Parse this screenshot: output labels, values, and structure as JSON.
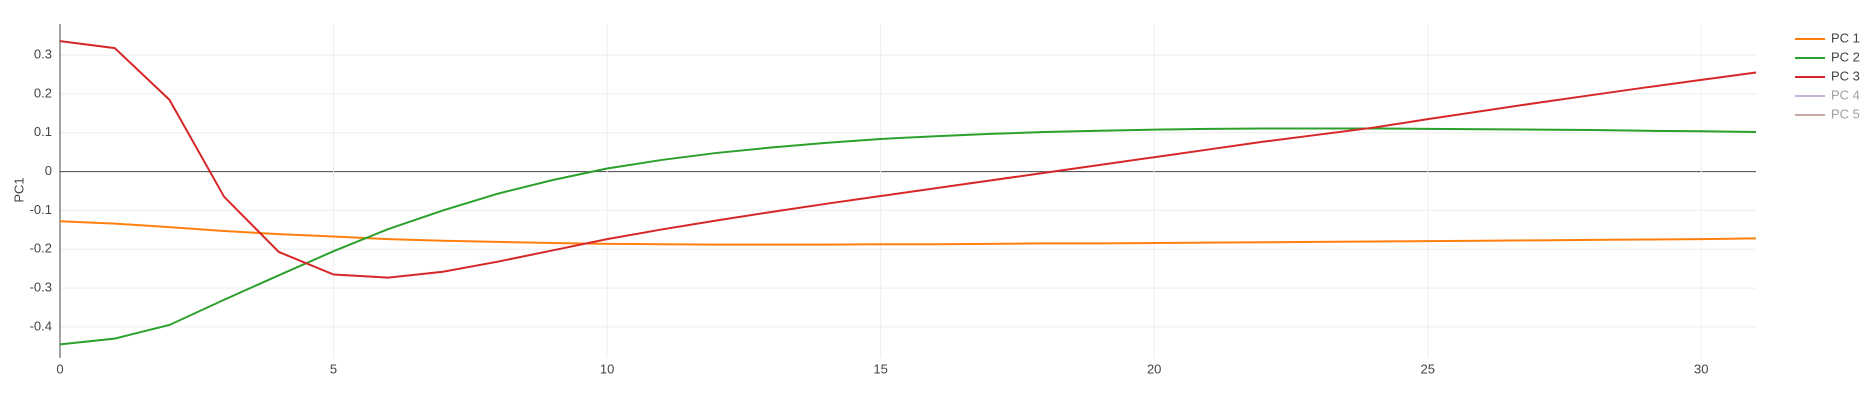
{
  "chart_data": {
    "type": "line",
    "y_label": "PC1",
    "x": [
      0,
      1,
      2,
      3,
      4,
      5,
      6,
      7,
      8,
      9,
      10,
      11,
      12,
      13,
      14,
      15,
      16,
      17,
      18,
      19,
      20,
      21,
      22,
      23,
      24,
      25,
      26,
      27,
      28,
      29,
      30,
      31
    ],
    "series": [
      {
        "name": "PC 1",
        "color": "#ff7f0e",
        "values": [
          -0.128,
          -0.134,
          -0.143,
          -0.153,
          -0.161,
          -0.167,
          -0.174,
          -0.178,
          -0.181,
          -0.184,
          -0.186,
          -0.187,
          -0.188,
          -0.188,
          -0.188,
          -0.187,
          -0.187,
          -0.186,
          -0.185,
          -0.185,
          -0.184,
          -0.183,
          -0.182,
          -0.181,
          -0.18,
          -0.179,
          -0.178,
          -0.177,
          -0.176,
          -0.175,
          -0.174,
          -0.172
        ]
      },
      {
        "name": "PC 2",
        "color": "#2ca02c",
        "values": [
          -0.445,
          -0.43,
          -0.395,
          -0.33,
          -0.267,
          -0.205,
          -0.148,
          -0.1,
          -0.057,
          -0.022,
          0.008,
          0.03,
          0.048,
          0.062,
          0.074,
          0.084,
          0.091,
          0.097,
          0.102,
          0.105,
          0.108,
          0.11,
          0.111,
          0.111,
          0.111,
          0.11,
          0.109,
          0.108,
          0.107,
          0.105,
          0.104,
          0.102
        ]
      },
      {
        "name": "PC 3",
        "color": "#d62728",
        "values": [
          0.336,
          0.318,
          0.185,
          -0.065,
          -0.207,
          -0.265,
          -0.273,
          -0.258,
          -0.232,
          -0.203,
          -0.174,
          -0.149,
          -0.126,
          -0.104,
          -0.083,
          -0.063,
          -0.043,
          -0.023,
          -0.003,
          0.017,
          0.037,
          0.057,
          0.077,
          0.095,
          0.113,
          0.135,
          0.156,
          0.177,
          0.197,
          0.217,
          0.236,
          0.255
        ]
      },
      {
        "name": "PC 4",
        "color": "#9467bd",
        "visible": "legendonly"
      },
      {
        "name": "PC 5",
        "color": "#8c564b",
        "visible": "legendonly"
      }
    ],
    "xlim": [
      0,
      31
    ],
    "xticks": [
      0,
      5,
      10,
      15,
      20,
      25,
      30
    ],
    "ylim": [
      -0.48,
      0.38
    ],
    "yticks": [
      -0.4,
      -0.3,
      -0.2,
      -0.1,
      0,
      0.1,
      0.2,
      0.3
    ],
    "grid": true,
    "legend": "right"
  }
}
